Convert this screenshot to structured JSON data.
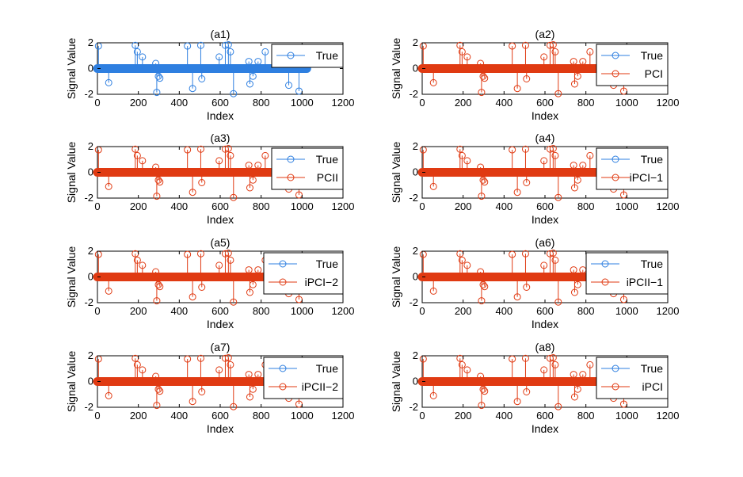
{
  "figure": {
    "colors": {
      "true": "#2e7fe0",
      "recon": "#e03a12",
      "axis": "#000000"
    }
  },
  "chart_data": [
    {
      "id": "a1",
      "type": "stem",
      "title": "(a1)",
      "xlabel": "Index",
      "ylabel": "Signal Value",
      "xlim": [
        0,
        1200
      ],
      "ylim": [
        -2,
        2
      ],
      "xticks": [
        "0",
        "200",
        "400",
        "600",
        "800",
        "1000",
        "1200"
      ],
      "yticks": [
        "2",
        "0",
        "-2"
      ],
      "series": [
        {
          "name": "True",
          "color": "true"
        }
      ],
      "n": 1024
    },
    {
      "id": "a2",
      "type": "stem",
      "title": "(a2)",
      "xlabel": "Index",
      "ylabel": "Signal Value",
      "xlim": [
        0,
        1200
      ],
      "ylim": [
        -2,
        2
      ],
      "xticks": [
        "0",
        "200",
        "400",
        "600",
        "800",
        "1000",
        "1200"
      ],
      "yticks": [
        "2",
        "0",
        "-2"
      ],
      "series": [
        {
          "name": "True",
          "color": "true"
        },
        {
          "name": "PCI",
          "color": "recon"
        }
      ],
      "n": 1024
    },
    {
      "id": "a3",
      "type": "stem",
      "title": "(a3)",
      "xlabel": "Index",
      "ylabel": "Signal Value",
      "xlim": [
        0,
        1200
      ],
      "ylim": [
        -2,
        2
      ],
      "xticks": [
        "0",
        "200",
        "400",
        "600",
        "800",
        "1000",
        "1200"
      ],
      "yticks": [
        "2",
        "0",
        "-2"
      ],
      "series": [
        {
          "name": "True",
          "color": "true"
        },
        {
          "name": "PCII",
          "color": "recon"
        }
      ],
      "n": 1024
    },
    {
      "id": "a4",
      "type": "stem",
      "title": "(a4)",
      "xlabel": "Index",
      "ylabel": "Signal Value",
      "xlim": [
        0,
        1200
      ],
      "ylim": [
        -2,
        2
      ],
      "xticks": [
        "0",
        "200",
        "400",
        "600",
        "800",
        "1000",
        "1200"
      ],
      "yticks": [
        "2",
        "0",
        "-2"
      ],
      "series": [
        {
          "name": "True",
          "color": "true"
        },
        {
          "name": "iPCI−1",
          "color": "recon"
        }
      ],
      "n": 1024
    },
    {
      "id": "a5",
      "type": "stem",
      "title": "(a5)",
      "xlabel": "Index",
      "ylabel": "Signal Value",
      "xlim": [
        0,
        1200
      ],
      "ylim": [
        -2,
        2
      ],
      "xticks": [
        "0",
        "200",
        "400",
        "600",
        "800",
        "1000",
        "1200"
      ],
      "yticks": [
        "2",
        "0",
        "-2"
      ],
      "series": [
        {
          "name": "True",
          "color": "true"
        },
        {
          "name": "iPCI−2",
          "color": "recon"
        }
      ],
      "n": 1024
    },
    {
      "id": "a6",
      "type": "stem",
      "title": "(a6)",
      "xlabel": "Index",
      "ylabel": "Signal Value",
      "xlim": [
        0,
        1200
      ],
      "ylim": [
        -2,
        2
      ],
      "xticks": [
        "0",
        "200",
        "400",
        "600",
        "800",
        "1000",
        "1200"
      ],
      "yticks": [
        "2",
        "0",
        "-2"
      ],
      "series": [
        {
          "name": "True",
          "color": "true"
        },
        {
          "name": "iPCII−1",
          "color": "recon"
        }
      ],
      "n": 1024
    },
    {
      "id": "a7",
      "type": "stem",
      "title": "(a7)",
      "xlabel": "Index",
      "ylabel": "Signal Value",
      "xlim": [
        0,
        1200
      ],
      "ylim": [
        -2,
        2
      ],
      "xticks": [
        "0",
        "200",
        "400",
        "600",
        "800",
        "1000",
        "1200"
      ],
      "yticks": [
        "2",
        "0",
        "-2"
      ],
      "series": [
        {
          "name": "True",
          "color": "true"
        },
        {
          "name": "iPCII−2",
          "color": "recon"
        }
      ],
      "n": 1024
    },
    {
      "id": "a8",
      "type": "stem",
      "title": "(a8)",
      "xlabel": "Index",
      "ylabel": "Signal Value",
      "xlim": [
        0,
        1200
      ],
      "ylim": [
        -2,
        2
      ],
      "xticks": [
        "0",
        "200",
        "400",
        "600",
        "800",
        "1000",
        "1200"
      ],
      "yticks": [
        "2",
        "0",
        "-2"
      ],
      "series": [
        {
          "name": "True",
          "color": "true"
        },
        {
          "name": "iPCI",
          "color": "recon"
        }
      ],
      "n": 1024
    }
  ],
  "spikes": [
    {
      "x": 5,
      "y": 1.75
    },
    {
      "x": 55,
      "y": -1.1
    },
    {
      "x": 185,
      "y": 1.8
    },
    {
      "x": 195,
      "y": 1.3
    },
    {
      "x": 220,
      "y": 0.9
    },
    {
      "x": 285,
      "y": 0.4
    },
    {
      "x": 290,
      "y": -1.85
    },
    {
      "x": 298,
      "y": -0.6
    },
    {
      "x": 305,
      "y": -0.75
    },
    {
      "x": 440,
      "y": 1.75
    },
    {
      "x": 465,
      "y": -1.55
    },
    {
      "x": 505,
      "y": 1.8
    },
    {
      "x": 510,
      "y": -0.8
    },
    {
      "x": 595,
      "y": 0.9
    },
    {
      "x": 625,
      "y": 1.8
    },
    {
      "x": 640,
      "y": 1.85
    },
    {
      "x": 650,
      "y": 1.3
    },
    {
      "x": 665,
      "y": -1.95
    },
    {
      "x": 740,
      "y": 0.55
    },
    {
      "x": 745,
      "y": -1.2
    },
    {
      "x": 760,
      "y": -0.6
    },
    {
      "x": 785,
      "y": 0.55
    },
    {
      "x": 820,
      "y": 1.3
    },
    {
      "x": 935,
      "y": -1.3
    },
    {
      "x": 985,
      "y": -1.75
    }
  ]
}
